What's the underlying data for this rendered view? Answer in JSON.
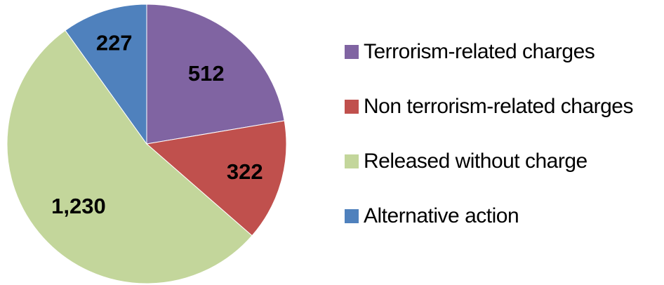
{
  "chart_data": {
    "type": "pie",
    "slices": [
      {
        "label": "Terrorism-related charges",
        "value": 512,
        "value_label": "512",
        "color": "#8064A2"
      },
      {
        "label": "Non terrorism-related charges",
        "value": 322,
        "value_label": "322",
        "color": "#C0504D"
      },
      {
        "label": "Released without charge",
        "value": 1230,
        "value_label": "1,230",
        "color": "#C3D69B"
      },
      {
        "label": "Alternative action",
        "value": 227,
        "value_label": "227",
        "color": "#4F81BD"
      }
    ],
    "start_angle_deg": 0,
    "direction": "clockwise",
    "legend_position": "right"
  }
}
